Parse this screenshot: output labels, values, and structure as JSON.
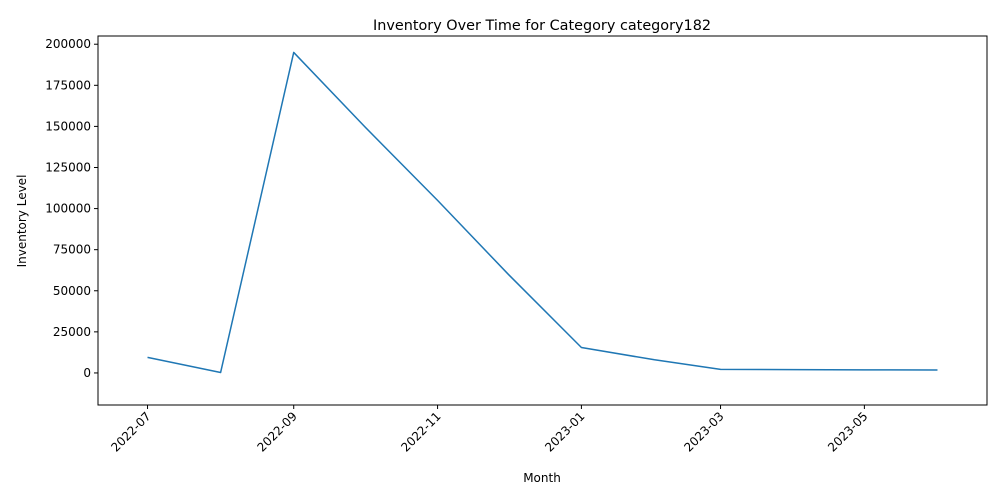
{
  "chart_data": {
    "type": "line",
    "title": "Inventory Over Time for Category category182",
    "xlabel": "Month",
    "ylabel": "Inventory Level",
    "x": [
      "2022-07-01",
      "2022-08-01",
      "2022-09-01",
      "2022-10-01",
      "2022-11-01",
      "2022-12-01",
      "2023-01-01",
      "2023-02-01",
      "2023-03-01",
      "2023-04-01",
      "2023-05-01",
      "2023-06-01"
    ],
    "series": [
      {
        "values": [
          9500,
          300,
          195000,
          150000,
          105000,
          60000,
          15500,
          8000,
          2200,
          2000,
          1900,
          1800
        ],
        "color": "#1f77b4"
      }
    ],
    "xlim": [
      "2022-06-10",
      "2023-06-22"
    ],
    "ylim": [
      -19500,
      205000
    ],
    "xticks": [
      "2022-07",
      "2022-09",
      "2022-11",
      "2023-01",
      "2023-03",
      "2023-05"
    ],
    "yticks": [
      "0",
      "25000",
      "50000",
      "75000",
      "100000",
      "125000",
      "150000",
      "175000",
      "200000"
    ],
    "grid": false,
    "legend": "none"
  }
}
